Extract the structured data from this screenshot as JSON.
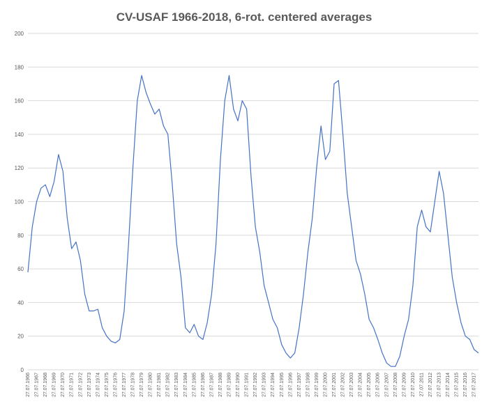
{
  "chart_data": {
    "type": "line",
    "title": "CV-USAF 1966-2018, 6-rot. centered averages",
    "categories": [
      "27.07.1966",
      null,
      "27.07.1967",
      null,
      "27.07.1968",
      null,
      "27.07.1969",
      null,
      "27.07.1970",
      null,
      "27.07.1971",
      null,
      "27.07.1972",
      null,
      "27.07.1973",
      null,
      "27.07.1974",
      null,
      "27.07.1975",
      null,
      "27.07.1976",
      null,
      "27.07.1977",
      null,
      "27.07.1978",
      null,
      "27.07.1979",
      null,
      "27.07.1980",
      null,
      "27.07.1981",
      null,
      "27.07.1982",
      null,
      "27.07.1983",
      null,
      "27.07.1984",
      null,
      "27.07.1985",
      null,
      "27.07.1986",
      null,
      "27.07.1987",
      null,
      "27.07.1988",
      null,
      "27.07.1989",
      null,
      "27.07.1990",
      null,
      "27.07.1991",
      null,
      "27.07.1992",
      null,
      "27.07.1993",
      null,
      "27.07.1994",
      null,
      "27.07.1995",
      null,
      "27.07.1996",
      null,
      "27.07.1997",
      null,
      "27.07.1998",
      null,
      "27.07.1999",
      null,
      "27.07.2000",
      null,
      "27.07.2001",
      null,
      "27.07.2002",
      null,
      "27.07.2003",
      null,
      "27.07.2004",
      null,
      "27.07.2005",
      null,
      "27.07.2006",
      null,
      "27.07.2007",
      null,
      "27.07.2008",
      null,
      "27.07.2009",
      null,
      "27.07.2010",
      null,
      "27.07.2011",
      null,
      "27.07.2012",
      null,
      "27.07.2013",
      null,
      "27.07.2014",
      null,
      "27.07.2015",
      null,
      "27.07.2016",
      null,
      "27.07.2017",
      null
    ],
    "series": [
      {
        "color": "#4472c4",
        "values": [
          58,
          85,
          100,
          108,
          110,
          103,
          112,
          128,
          118,
          90,
          72,
          76,
          65,
          45,
          35,
          35,
          36,
          25,
          20,
          17,
          16,
          18,
          35,
          75,
          120,
          160,
          175,
          165,
          158,
          152,
          155,
          145,
          140,
          110,
          75,
          55,
          25,
          22,
          27,
          20,
          18,
          28,
          45,
          75,
          125,
          160,
          175,
          155,
          148,
          160,
          155,
          115,
          85,
          70,
          50,
          40,
          30,
          25,
          15,
          10,
          7,
          10,
          25,
          45,
          70,
          90,
          120,
          145,
          125,
          130,
          170,
          172,
          140,
          105,
          85,
          65,
          57,
          45,
          30,
          25,
          18,
          10,
          4,
          2,
          2,
          8,
          20,
          30,
          50,
          85,
          95,
          85,
          82,
          100,
          118,
          105,
          80,
          55,
          40,
          28,
          20,
          18,
          12,
          10
        ]
      }
    ],
    "ylim": [
      0,
      200
    ],
    "yticks": [
      0,
      20,
      40,
      60,
      80,
      100,
      120,
      140,
      160,
      180,
      200
    ],
    "grid": true
  }
}
